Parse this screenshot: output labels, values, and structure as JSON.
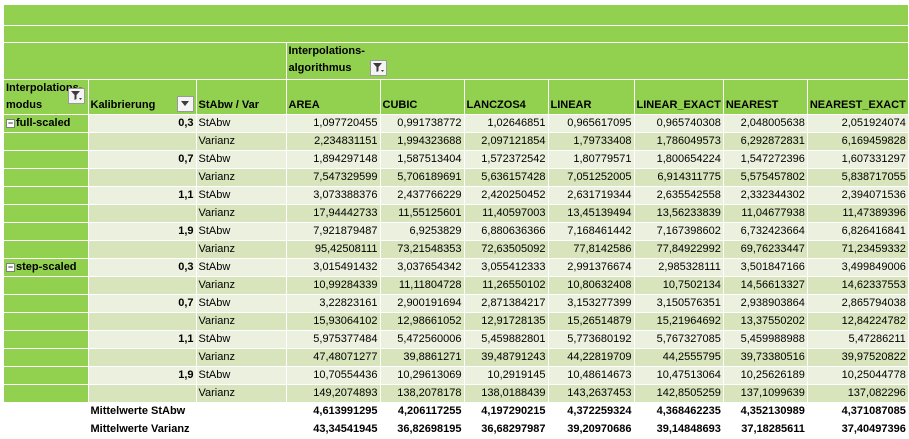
{
  "header": {
    "algo_caption": "Interpolations-\nalgorithmus",
    "mode_caption": "Interpolations-\nmodus",
    "kalibrierung_caption": "Kalibrierung",
    "stat_caption": "StAbw / Var",
    "columns": [
      "AREA",
      "CUBIC",
      "LANCZOS4",
      "LINEAR",
      "LINEAR_EXACT",
      "NEAREST",
      "NEAREST_EXACT"
    ]
  },
  "groups": [
    {
      "mode": "full-scaled",
      "rows": [
        {
          "kal": "0,3",
          "stat": "StAbw",
          "values": [
            "1,097720455",
            "0,991738772",
            "1,02646851",
            "0,965617095",
            "0,965740308",
            "2,048005638",
            "2,051924074"
          ]
        },
        {
          "kal": "",
          "stat": "Varianz",
          "values": [
            "2,234831151",
            "1,994323688",
            "2,097121854",
            "1,79733408",
            "1,786049573",
            "6,292872831",
            "6,169459828"
          ]
        },
        {
          "kal": "0,7",
          "stat": "StAbw",
          "values": [
            "1,894297148",
            "1,587513404",
            "1,572372542",
            "1,80779571",
            "1,800654224",
            "1,547272396",
            "1,607331297"
          ]
        },
        {
          "kal": "",
          "stat": "Varianz",
          "values": [
            "7,547329599",
            "5,706189691",
            "5,636157428",
            "7,051252005",
            "6,914311775",
            "5,575457802",
            "5,838717055"
          ]
        },
        {
          "kal": "1,1",
          "stat": "StAbw",
          "values": [
            "3,073388376",
            "2,437766229",
            "2,420250452",
            "2,631719344",
            "2,635542558",
            "2,332344302",
            "2,394071536"
          ]
        },
        {
          "kal": "",
          "stat": "Varianz",
          "values": [
            "17,94442733",
            "11,55125601",
            "11,40597003",
            "13,45139494",
            "13,56233839",
            "11,04677938",
            "11,47389396"
          ]
        },
        {
          "kal": "1,9",
          "stat": "StAbw",
          "values": [
            "7,921879487",
            "6,9253829",
            "6,880636366",
            "7,168461442",
            "7,167398602",
            "6,732423664",
            "6,826416841"
          ]
        },
        {
          "kal": "",
          "stat": "Varianz",
          "values": [
            "95,42508111",
            "73,21548353",
            "72,63505092",
            "77,8142586",
            "77,84922992",
            "69,76233447",
            "71,23459332"
          ]
        }
      ]
    },
    {
      "mode": "step-scaled",
      "rows": [
        {
          "kal": "0,3",
          "stat": "StAbw",
          "values": [
            "3,015491432",
            "3,037654342",
            "3,055412333",
            "2,991376674",
            "2,985328111",
            "3,501847166",
            "3,499849006"
          ]
        },
        {
          "kal": "",
          "stat": "Varianz",
          "values": [
            "10,99284339",
            "11,11804728",
            "11,26550102",
            "10,80632408",
            "10,7502134",
            "14,56613327",
            "14,62337553"
          ]
        },
        {
          "kal": "0,7",
          "stat": "StAbw",
          "values": [
            "3,22823161",
            "2,900191694",
            "2,871384217",
            "3,153277399",
            "3,150576351",
            "2,938903864",
            "2,865794038"
          ]
        },
        {
          "kal": "",
          "stat": "Varianz",
          "values": [
            "15,93064102",
            "12,98661052",
            "12,91728135",
            "15,26514879",
            "15,21964692",
            "13,37550202",
            "12,84224782"
          ]
        },
        {
          "kal": "1,1",
          "stat": "StAbw",
          "values": [
            "5,975377484",
            "5,472560006",
            "5,459882801",
            "5,773680192",
            "5,767327085",
            "5,459988988",
            "5,47286211"
          ]
        },
        {
          "kal": "",
          "stat": "Varianz",
          "values": [
            "47,48071277",
            "39,8861271",
            "39,48791243",
            "44,22819709",
            "44,2555795",
            "39,73380516",
            "39,97520822"
          ]
        },
        {
          "kal": "1,9",
          "stat": "StAbw",
          "values": [
            "10,70554436",
            "10,29613069",
            "10,2919145",
            "10,48614673",
            "10,47513064",
            "10,25626189",
            "10,25044778"
          ]
        },
        {
          "kal": "",
          "stat": "Varianz",
          "values": [
            "149,2074893",
            "138,2078178",
            "138,0188439",
            "143,2637453",
            "142,8505259",
            "137,1099639",
            "137,082296"
          ]
        }
      ]
    }
  ],
  "summary": [
    {
      "label": "Mittelwerte StAbw",
      "values": [
        "4,613991295",
        "4,206117255",
        "4,197290215",
        "4,372259324",
        "4,368462235",
        "4,352130989",
        "4,371087085"
      ]
    },
    {
      "label": "Mittelwerte Varianz",
      "values": [
        "43,34541945",
        "36,82698195",
        "36,68297987",
        "39,20970686",
        "39,14848693",
        "37,18285611",
        "37,40497396"
      ]
    }
  ],
  "icons": {
    "filter": "funnel-filter-icon",
    "dropdown": "dropdown-arrow-icon",
    "collapse": "collapse-minus-icon"
  },
  "colors": {
    "header_green": "#92d050",
    "row_light": "#ebf1de",
    "row_medium": "#d8e4bc"
  }
}
